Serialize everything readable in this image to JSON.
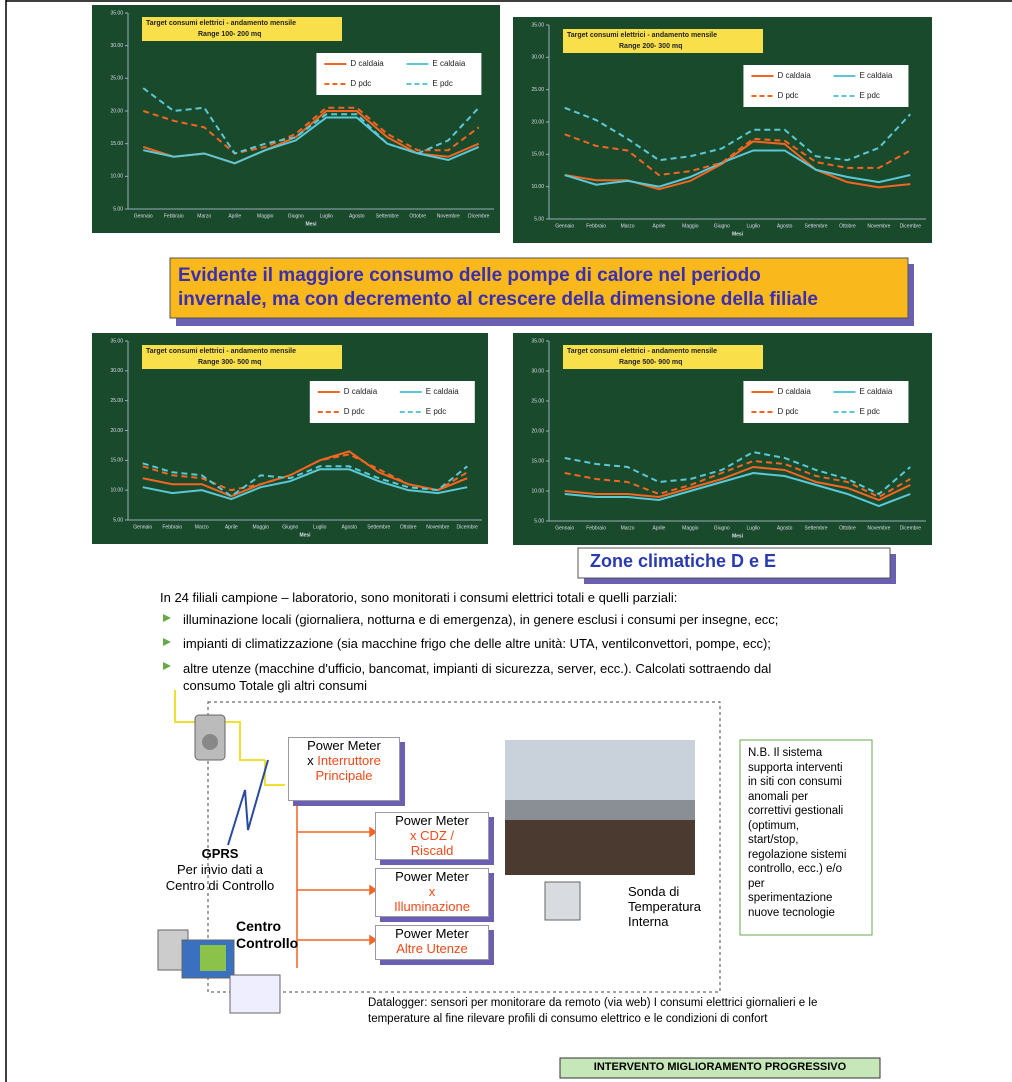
{
  "chart_data": [
    {
      "type": "line",
      "title": "Target consumi elettrici - andamento mensile",
      "subtitle": "Range 100- 200 mq",
      "x_label": "Mesi",
      "categories": [
        "Gennaio",
        "Febbraio",
        "Marzo",
        "Aprile",
        "Maggio",
        "Giugno",
        "Luglio",
        "Agosto",
        "Settembre",
        "Ottobre",
        "Novembre",
        "Dicembre"
      ],
      "ylim": [
        5,
        35
      ],
      "yticks": [
        {
          "value": 5,
          "label": "5.00"
        },
        {
          "value": 10,
          "label": "10.00"
        },
        {
          "value": 15,
          "label": "15.00"
        },
        {
          "value": 20,
          "label": "20.00"
        },
        {
          "value": 25,
          "label": "25.00"
        },
        {
          "value": 30,
          "label": "30.00"
        },
        {
          "value": 35,
          "label": "35.00"
        }
      ],
      "series": [
        {
          "name": "D caldaia",
          "color": "#f26522",
          "style": "solid",
          "values": [
            14.5,
            13,
            13.5,
            12,
            14,
            16,
            20,
            20,
            16,
            13.5,
            13,
            15
          ]
        },
        {
          "name": "E caldaia",
          "color": "#5bc8d8",
          "style": "solid",
          "values": [
            14,
            13,
            13.5,
            12,
            14,
            15.5,
            19,
            19,
            15,
            13.5,
            12.5,
            14.5
          ]
        },
        {
          "name": "D pdc",
          "color": "#f26522",
          "style": "dashed",
          "values": [
            20,
            18.5,
            17.5,
            13.5,
            14.5,
            16.5,
            20.5,
            20.5,
            16.5,
            14,
            14,
            17.5
          ]
        },
        {
          "name": "E pdc",
          "color": "#5bc8d8",
          "style": "dashed",
          "values": [
            23.5,
            20,
            20.5,
            13.5,
            15,
            16,
            19.5,
            19.5,
            15,
            13.5,
            15.5,
            20.5
          ]
        }
      ]
    },
    {
      "type": "line",
      "title": "Target consumi elettrici - andamento mensile",
      "subtitle": "Range 200- 300 mq",
      "x_label": "Mesi",
      "categories": [
        "Gennaio",
        "Febbraio",
        "Marzo",
        "Aprile",
        "Maggio",
        "Giugno",
        "Luglio",
        "Agosto",
        "Settembre",
        "Ottobre",
        "Novembre",
        "Dicembre"
      ],
      "ylim": [
        5,
        35
      ],
      "yticks": [
        {
          "value": 5,
          "label": "5.00"
        },
        {
          "value": 10,
          "label": "10.00"
        },
        {
          "value": 15,
          "label": "15.00"
        },
        {
          "value": 20,
          "label": "20.00"
        },
        {
          "value": 25,
          "label": "25.00"
        },
        {
          "value": 30,
          "label": "30.00"
        },
        {
          "value": 35,
          "label": "35.00"
        }
      ],
      "series": [
        {
          "name": "D caldaia",
          "color": "#f26522",
          "style": "solid",
          "values": [
            11.8,
            11,
            11,
            9.6,
            10.9,
            13.5,
            17,
            16.6,
            12.6,
            10.7,
            9.9,
            10.4
          ]
        },
        {
          "name": "E caldaia",
          "color": "#5bc8d8",
          "style": "solid",
          "values": [
            11.8,
            10.3,
            10.9,
            10,
            11.5,
            13.7,
            15.6,
            15.6,
            12.6,
            11.5,
            10.7,
            11.8
          ]
        },
        {
          "name": "D pdc",
          "color": "#f26522",
          "style": "dashed",
          "values": [
            18.1,
            16.3,
            15.6,
            11.8,
            12.4,
            13.7,
            17.4,
            17.1,
            13.8,
            12.9,
            12.9,
            15.6
          ]
        },
        {
          "name": "E pdc",
          "color": "#5bc8d8",
          "style": "dashed",
          "values": [
            22.2,
            20.3,
            17.4,
            14.1,
            14.7,
            15.9,
            18.8,
            18.8,
            14.7,
            14.1,
            16,
            21.2
          ]
        }
      ]
    },
    {
      "type": "line",
      "title": "Target consumi elettrici - andamento mensile",
      "subtitle": "Range 300- 500 mq",
      "x_label": "Mesi",
      "categories": [
        "Gennaio",
        "Febbraio",
        "Marzo",
        "Aprile",
        "Maggio",
        "Giugno",
        "Luglio",
        "Agosto",
        "Settembre",
        "Ottobre",
        "Novembre",
        "Dicembre"
      ],
      "ylim": [
        5,
        35
      ],
      "yticks": [
        {
          "value": 5,
          "label": "5.00"
        },
        {
          "value": 10,
          "label": "10.00"
        },
        {
          "value": 15,
          "label": "15.00"
        },
        {
          "value": 20,
          "label": "20.00"
        },
        {
          "value": 25,
          "label": "25.00"
        },
        {
          "value": 30,
          "label": "30.00"
        },
        {
          "value": 35,
          "label": "35.00"
        }
      ],
      "series": [
        {
          "name": "D caldaia",
          "color": "#f26522",
          "style": "solid",
          "values": [
            12,
            11,
            11,
            9,
            11,
            12.5,
            15,
            16.5,
            13,
            11,
            10,
            12
          ]
        },
        {
          "name": "E caldaia",
          "color": "#5bc8d8",
          "style": "solid",
          "values": [
            10.5,
            9.5,
            10,
            8.5,
            10.5,
            11.5,
            13.5,
            13.5,
            11.5,
            10,
            9.5,
            10.5
          ]
        },
        {
          "name": "D pdc",
          "color": "#f26522",
          "style": "dashed",
          "values": [
            14,
            12.5,
            12,
            10,
            11,
            12.5,
            15,
            16,
            13.5,
            11,
            10,
            13
          ]
        },
        {
          "name": "E pdc",
          "color": "#5bc8d8",
          "style": "dashed",
          "values": [
            14.5,
            13,
            12.5,
            9,
            12.5,
            12,
            14,
            14,
            12,
            10.5,
            10,
            14
          ]
        }
      ]
    },
    {
      "type": "line",
      "title": "Target consumi elettrici - andamento mensile",
      "subtitle": "Range 500- 900 mq",
      "x_label": "Mesi",
      "categories": [
        "Gennaio",
        "Febbraio",
        "Marzo",
        "Aprile",
        "Maggio",
        "Giugno",
        "Luglio",
        "Agosto",
        "Settembre",
        "Ottobre",
        "Novembre",
        "Dicembre"
      ],
      "ylim": [
        5,
        35
      ],
      "yticks": [
        {
          "value": 5,
          "label": "5.00"
        },
        {
          "value": 10,
          "label": "10.00"
        },
        {
          "value": 15,
          "label": "15.00"
        },
        {
          "value": 20,
          "label": "20.00"
        },
        {
          "value": 25,
          "label": "25.00"
        },
        {
          "value": 30,
          "label": "30.00"
        },
        {
          "value": 35,
          "label": "35.00"
        }
      ],
      "series": [
        {
          "name": "D caldaia",
          "color": "#f26522",
          "style": "solid",
          "values": [
            10,
            9.5,
            9.5,
            9,
            10.5,
            12,
            14,
            13.5,
            11.5,
            10.5,
            8.5,
            11
          ]
        },
        {
          "name": "E caldaia",
          "color": "#5bc8d8",
          "style": "solid",
          "values": [
            9.5,
            9,
            9,
            8.5,
            10,
            11.5,
            13,
            12.5,
            11,
            9.5,
            7.5,
            9.5
          ]
        },
        {
          "name": "D pdc",
          "color": "#f26522",
          "style": "dashed",
          "values": [
            13,
            12,
            11.5,
            9.5,
            11,
            13,
            15,
            14.5,
            12.5,
            11.5,
            9,
            12
          ]
        },
        {
          "name": "E pdc",
          "color": "#5bc8d8",
          "style": "dashed",
          "values": [
            15.5,
            14.5,
            14,
            11.5,
            12,
            13.5,
            16.5,
            15.5,
            13.5,
            12,
            9.5,
            14
          ]
        }
      ]
    }
  ],
  "banner": [
    "Evidente il maggiore consumo delle pompe di calore nel periodo",
    "invernale, ma con decremento al crescere della dimensione della filiale"
  ],
  "zone_label": "Zone climatiche D e E",
  "intro": "In 24 filiali campione – laboratorio, sono monitorati i consumi elettrici totali e quelli parziali:",
  "bullets": [
    [
      "illuminazione locali (giornaliera, notturna e di emergenza), in genere esclusi i consumi per insegne, ecc;"
    ],
    [
      "impianti di climatizzazione (sia macchine frigo che delle altre unità: UTA, ventilconvettori, pompe, ecc);"
    ],
    [
      "altre utenze (macchine d'ufficio, bancomat, impianti di sicurezza, server, ecc.). Calcolati sottraendo dal",
      "consumo Totale gli altri consumi"
    ]
  ],
  "meters": [
    {
      "title": "Power Meter",
      "prefix": "x",
      "detail": [
        "Interruttore",
        "Principale"
      ]
    },
    {
      "title": "Power Meter",
      "detail": [
        "x CDZ /",
        "Riscald"
      ]
    },
    {
      "title": "Power Meter",
      "detail": [
        "x",
        "Illuminazione"
      ]
    },
    {
      "title": "Power Meter",
      "detail": [
        "Altre Utenze"
      ]
    }
  ],
  "gprs": {
    "title": "GPRS",
    "lines": [
      "Per invio dati a",
      "Centro di Controllo"
    ]
  },
  "control": [
    "Centro",
    "Controllo"
  ],
  "sensor": [
    "Sonda di",
    "Temperatura",
    "Interna"
  ],
  "note": [
    "N.B. Il sistema",
    "supporta interventi",
    "in siti con consumi",
    "anomali per",
    "correttivi gestionali",
    "(optimum,",
    "start/stop,",
    "regolazione sistemi",
    "controllo, ecc.) e/o",
    "per",
    "sperimentazione",
    "nuove tecnologie"
  ],
  "datalogger": [
    "Datalogger: sensori per monitorare da remoto (via web)  I consumi elettrici giornalieri e le",
    "temperature al fine rilevare profili di consumo elettrico e le condizioni di confort"
  ],
  "footer": "INTERVENTO MIGLIORAMENTO PROGRESSIVO"
}
